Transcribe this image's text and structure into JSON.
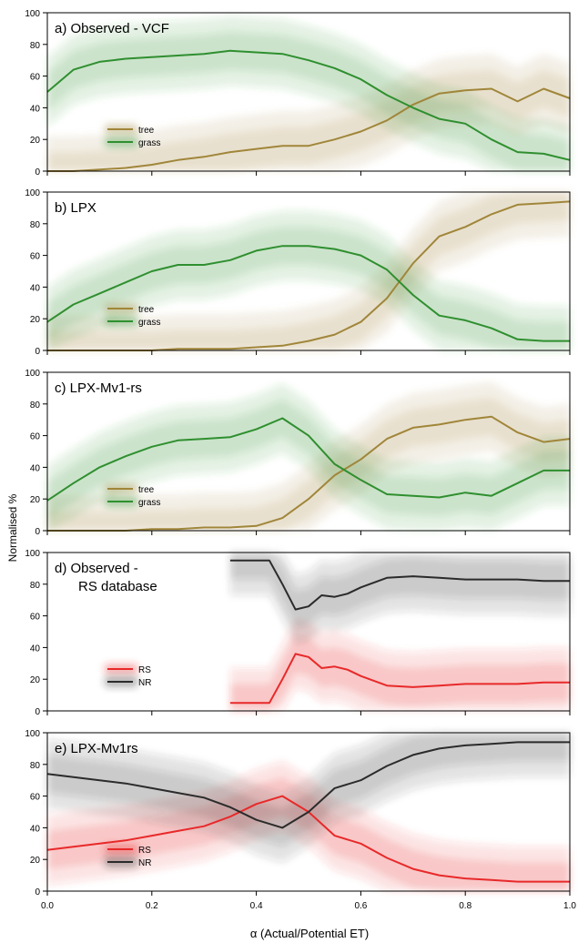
{
  "figure": {
    "ylabel": "Normalised %",
    "xlabel": "α (Actual/Potential ET)",
    "x_ticks": [
      "0.0",
      "0.2",
      "0.4",
      "0.6",
      "0.8",
      "1.0"
    ]
  },
  "chart_data": [
    {
      "type": "line",
      "title": "a) Observed - VCF",
      "xlim": [
        0,
        1
      ],
      "ylim": [
        0,
        100
      ],
      "y_ticks": [
        0,
        20,
        40,
        60,
        80,
        100
      ],
      "legend_position": "left",
      "series": [
        {
          "name": "tree",
          "color": "#a0863a",
          "x": [
            0,
            0.05,
            0.1,
            0.15,
            0.2,
            0.25,
            0.3,
            0.35,
            0.4,
            0.45,
            0.5,
            0.55,
            0.6,
            0.65,
            0.7,
            0.75,
            0.8,
            0.85,
            0.9,
            0.95,
            1.0
          ],
          "y": [
            0,
            0,
            1,
            2,
            4,
            7,
            9,
            12,
            14,
            16,
            16,
            20,
            25,
            32,
            42,
            49,
            51,
            52,
            44,
            52,
            46
          ]
        },
        {
          "name": "grass",
          "color": "#2f8f2f",
          "x": [
            0,
            0.05,
            0.1,
            0.15,
            0.2,
            0.25,
            0.3,
            0.35,
            0.4,
            0.45,
            0.5,
            0.55,
            0.6,
            0.65,
            0.7,
            0.75,
            0.8,
            0.85,
            0.9,
            0.95,
            1.0
          ],
          "y": [
            50,
            64,
            69,
            71,
            72,
            73,
            74,
            76,
            75,
            74,
            70,
            65,
            58,
            48,
            40,
            33,
            30,
            20,
            12,
            11,
            7
          ]
        }
      ]
    },
    {
      "type": "line",
      "title": "b) LPX",
      "xlim": [
        0,
        1
      ],
      "ylim": [
        0,
        100
      ],
      "y_ticks": [
        0,
        20,
        40,
        60,
        80,
        100
      ],
      "legend_position": "left",
      "series": [
        {
          "name": "tree",
          "color": "#a0863a",
          "x": [
            0,
            0.05,
            0.1,
            0.15,
            0.2,
            0.25,
            0.3,
            0.35,
            0.4,
            0.45,
            0.5,
            0.55,
            0.6,
            0.65,
            0.7,
            0.75,
            0.8,
            0.85,
            0.9,
            0.95,
            1.0
          ],
          "y": [
            0,
            0,
            0,
            0,
            0,
            1,
            1,
            1,
            2,
            3,
            6,
            10,
            18,
            33,
            55,
            72,
            78,
            86,
            92,
            93,
            94
          ]
        },
        {
          "name": "grass",
          "color": "#2f8f2f",
          "x": [
            0,
            0.05,
            0.1,
            0.15,
            0.2,
            0.25,
            0.3,
            0.35,
            0.4,
            0.45,
            0.5,
            0.55,
            0.6,
            0.65,
            0.7,
            0.75,
            0.8,
            0.85,
            0.9,
            0.95,
            1.0
          ],
          "y": [
            18,
            29,
            36,
            43,
            50,
            54,
            54,
            57,
            63,
            66,
            66,
            64,
            60,
            51,
            35,
            22,
            19,
            14,
            7,
            6,
            6
          ]
        }
      ]
    },
    {
      "type": "line",
      "title": "c) LPX-Mv1-rs",
      "xlim": [
        0,
        1
      ],
      "ylim": [
        0,
        100
      ],
      "y_ticks": [
        0,
        20,
        40,
        60,
        80,
        100
      ],
      "legend_position": "left",
      "series": [
        {
          "name": "tree",
          "color": "#a0863a",
          "x": [
            0,
            0.05,
            0.1,
            0.15,
            0.2,
            0.25,
            0.3,
            0.35,
            0.4,
            0.45,
            0.5,
            0.55,
            0.6,
            0.65,
            0.7,
            0.75,
            0.8,
            0.85,
            0.9,
            0.95,
            1.0
          ],
          "y": [
            0,
            0,
            0,
            0,
            1,
            1,
            2,
            2,
            3,
            8,
            20,
            35,
            45,
            58,
            65,
            67,
            70,
            72,
            62,
            56,
            58
          ]
        },
        {
          "name": "grass",
          "color": "#2f8f2f",
          "x": [
            0,
            0.05,
            0.1,
            0.15,
            0.2,
            0.25,
            0.3,
            0.35,
            0.4,
            0.45,
            0.5,
            0.55,
            0.6,
            0.65,
            0.7,
            0.75,
            0.8,
            0.85,
            0.9,
            0.95,
            1.0
          ],
          "y": [
            19,
            30,
            40,
            47,
            53,
            57,
            58,
            59,
            64,
            71,
            60,
            42,
            32,
            23,
            22,
            21,
            24,
            22,
            30,
            38,
            38
          ]
        }
      ]
    },
    {
      "type": "line",
      "title": "d) Observed -",
      "title_line2": "RS database",
      "xlim": [
        0,
        1
      ],
      "ylim": [
        0,
        100
      ],
      "y_ticks": [
        0,
        20,
        40,
        60,
        80,
        100
      ],
      "legend_position": "left",
      "series": [
        {
          "name": "RS",
          "color": "#e8292a",
          "x": [
            0.35,
            0.375,
            0.4,
            0.425,
            0.45,
            0.475,
            0.5,
            0.525,
            0.55,
            0.575,
            0.6,
            0.65,
            0.7,
            0.75,
            0.8,
            0.85,
            0.9,
            0.95,
            1.0
          ],
          "y": [
            5,
            5,
            5,
            5,
            20,
            36,
            34,
            27,
            28,
            26,
            22,
            16,
            15,
            16,
            17,
            17,
            17,
            18,
            18
          ]
        },
        {
          "name": "NR",
          "color": "#2b2b2b",
          "x": [
            0.35,
            0.375,
            0.4,
            0.425,
            0.45,
            0.475,
            0.5,
            0.525,
            0.55,
            0.575,
            0.6,
            0.65,
            0.7,
            0.75,
            0.8,
            0.85,
            0.9,
            0.95,
            1.0
          ],
          "y": [
            95,
            95,
            95,
            95,
            80,
            64,
            66,
            73,
            72,
            74,
            78,
            84,
            85,
            84,
            83,
            83,
            83,
            82,
            82
          ]
        }
      ]
    },
    {
      "type": "line",
      "title": "e) LPX-Mv1rs",
      "xlim": [
        0,
        1
      ],
      "ylim": [
        0,
        100
      ],
      "y_ticks": [
        0,
        20,
        40,
        60,
        80,
        100
      ],
      "legend_position": "left",
      "series": [
        {
          "name": "RS",
          "color": "#e8292a",
          "x": [
            0,
            0.05,
            0.1,
            0.15,
            0.2,
            0.25,
            0.3,
            0.35,
            0.4,
            0.45,
            0.5,
            0.55,
            0.6,
            0.65,
            0.7,
            0.75,
            0.8,
            0.85,
            0.9,
            0.95,
            1.0
          ],
          "y": [
            26,
            28,
            30,
            32,
            35,
            38,
            41,
            47,
            55,
            60,
            50,
            35,
            30,
            21,
            14,
            10,
            8,
            7,
            6,
            6,
            6
          ]
        },
        {
          "name": "NR",
          "color": "#2b2b2b",
          "x": [
            0,
            0.05,
            0.1,
            0.15,
            0.2,
            0.25,
            0.3,
            0.35,
            0.4,
            0.45,
            0.5,
            0.55,
            0.6,
            0.65,
            0.7,
            0.75,
            0.8,
            0.85,
            0.9,
            0.95,
            1.0
          ],
          "y": [
            74,
            72,
            70,
            68,
            65,
            62,
            59,
            53,
            45,
            40,
            50,
            65,
            70,
            79,
            86,
            90,
            92,
            93,
            94,
            94,
            94
          ]
        }
      ]
    }
  ]
}
